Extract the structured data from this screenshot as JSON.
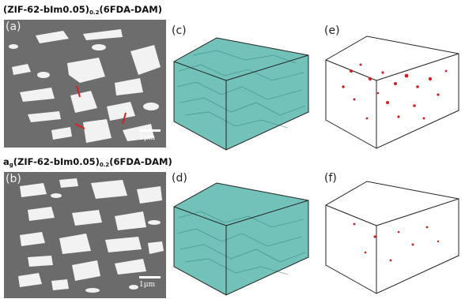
{
  "figure": {
    "row1_title": {
      "main": "(ZIF-62-bIm0.05)",
      "sub": "0.2",
      "rest": "(6FDA-DAM)"
    },
    "row2_title": {
      "prefix": "a",
      "prefix_sub": "g",
      "main": "(ZIF-62-bIm0.05)",
      "sub": "0.2",
      "rest": "(6FDA-DAM)"
    },
    "panels": [
      {
        "id": "a",
        "label": "(a)",
        "scalebar": "1μm"
      },
      {
        "id": "b",
        "label": "(b)",
        "scalebar": "1μm"
      },
      {
        "id": "c",
        "label": "(c)"
      },
      {
        "id": "d",
        "label": "(d)"
      },
      {
        "id": "e",
        "label": "(e)"
      },
      {
        "id": "f",
        "label": "(f)"
      }
    ]
  },
  "colors": {
    "sem_matrix": "#6b6b6b",
    "sem_particle": "#f2f2f2",
    "void_marker": "#d62020",
    "reconstruction": "#59b7ad",
    "box_edge": "#222222"
  }
}
